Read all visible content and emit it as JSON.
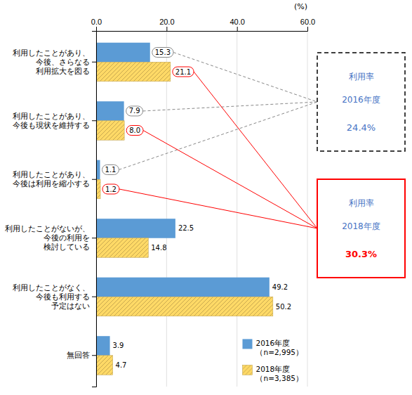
{
  "chart_data": {
    "type": "bar",
    "orientation": "horizontal",
    "categories": [
      "利用したことがあり、\n今後、さらなる\n利用拡大を図る",
      "利用したことがあり、\n今後も現状を維持する",
      "利用したことがあり、\n今後は利用を縮小する",
      "利用したことがないが、\n今後の利用を\n検討している",
      "利用したことがなく、\n今後も利用する\n予定はない",
      "無回答"
    ],
    "series": [
      {
        "name": "2016年度\n（n=2,995）",
        "color": "#5B9BD5",
        "values": [
          15.3,
          7.9,
          1.1,
          22.5,
          49.2,
          3.9
        ]
      },
      {
        "name": "2018年度\n（n=3,385）",
        "color": "#FFD966",
        "values": [
          21.1,
          8.0,
          1.2,
          14.8,
          50.2,
          4.7
        ],
        "value_labels": [
          "21.1",
          "8.0",
          "1.2",
          "14.8",
          "50.2",
          "4.7"
        ]
      }
    ],
    "xlim": [
      0,
      60
    ],
    "xticks": [
      {
        "value": 0,
        "label": "0.0"
      },
      {
        "value": 20,
        "label": "20.0"
      },
      {
        "value": 40,
        "label": "40.0"
      },
      {
        "value": 60,
        "label": "60.0"
      }
    ],
    "xlabel": "(%)",
    "grid": true,
    "data_labels": true,
    "legend": "lower right",
    "annotations": [
      [
        "利用率",
        "2016年度",
        "24.4%"
      ],
      [
        "利用率",
        "2018年度",
        "30.3%"
      ]
    ]
  }
}
